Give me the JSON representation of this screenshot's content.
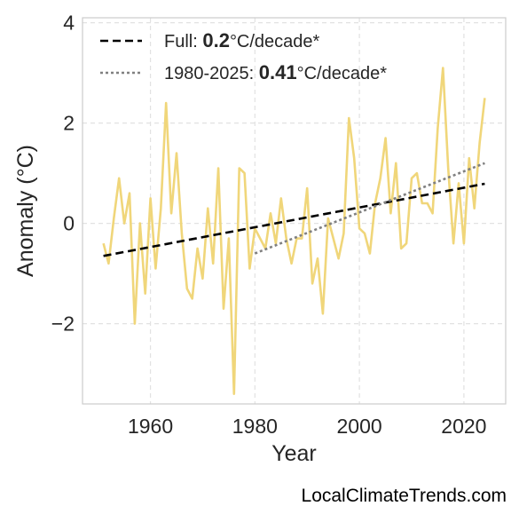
{
  "chart_data": {
    "type": "line",
    "xlabel": "Year",
    "ylabel": "Anomaly (°C)",
    "xlim": [
      1947,
      2028
    ],
    "ylim": [
      -3.6,
      4.1
    ],
    "xticks": [
      1960,
      1980,
      2000,
      2020
    ],
    "yticks": [
      -2,
      0,
      2,
      4
    ],
    "ytick_labels": [
      "−2",
      "0",
      "2",
      "4"
    ],
    "grid": true,
    "legend_position": "top-left",
    "series": [
      {
        "color": "#f0d67a",
        "x": [
          1951,
          1952,
          1953,
          1954,
          1955,
          1956,
          1957,
          1958,
          1959,
          1960,
          1961,
          1962,
          1963,
          1964,
          1965,
          1966,
          1967,
          1968,
          1969,
          1970,
          1971,
          1972,
          1973,
          1974,
          1975,
          1976,
          1977,
          1978,
          1979,
          1980,
          1981,
          1982,
          1983,
          1984,
          1985,
          1986,
          1987,
          1988,
          1989,
          1990,
          1991,
          1992,
          1993,
          1994,
          1995,
          1996,
          1997,
          1998,
          1999,
          2000,
          2001,
          2002,
          2003,
          2004,
          2005,
          2006,
          2007,
          2008,
          2009,
          2010,
          2011,
          2012,
          2013,
          2014,
          2015,
          2016,
          2017,
          2018,
          2019,
          2020,
          2021,
          2022,
          2023,
          2024
        ],
        "y": [
          -0.4,
          -0.8,
          0.1,
          0.9,
          0.0,
          0.6,
          -2.0,
          0.0,
          -1.4,
          0.5,
          -0.9,
          0.3,
          2.4,
          0.2,
          1.4,
          -0.2,
          -1.3,
          -1.5,
          -0.5,
          -1.1,
          0.3,
          -0.8,
          1.1,
          -1.7,
          -0.3,
          -3.4,
          1.1,
          1.0,
          -0.9,
          -0.1,
          -0.3,
          -0.5,
          0.2,
          -0.4,
          0.5,
          -0.3,
          -0.8,
          -0.3,
          -0.3,
          0.7,
          -1.2,
          -0.7,
          -1.8,
          0.1,
          -0.3,
          -0.7,
          -0.2,
          2.1,
          1.3,
          -0.1,
          -0.2,
          -0.6,
          0.4,
          0.9,
          1.7,
          0.2,
          1.2,
          -0.5,
          -0.4,
          0.9,
          1.0,
          0.4,
          0.4,
          0.2,
          1.9,
          3.1,
          1.1,
          -0.4,
          0.8,
          -0.4,
          1.3,
          0.3,
          1.6,
          2.5
        ]
      },
      {
        "name": "Full: ",
        "color": "#000000",
        "style": "dashed",
        "x": [
          1951,
          2024
        ],
        "y": [
          -0.65,
          0.79
        ]
      },
      {
        "name": "1980-2025: ",
        "color": "#808080",
        "style": "dotted",
        "x": [
          1980,
          2024
        ],
        "y": [
          -0.6,
          1.2
        ]
      }
    ],
    "legend": [
      {
        "prefix": "Full: ",
        "value": "0.2",
        "suffix": "°C/decade*",
        "color": "#000000",
        "style": "dashed"
      },
      {
        "prefix": "1980-2025: ",
        "value": "0.41",
        "suffix": "°C/decade*",
        "color": "#808080",
        "style": "dotted"
      }
    ]
  },
  "watermark": "LocalClimateTrends.com"
}
